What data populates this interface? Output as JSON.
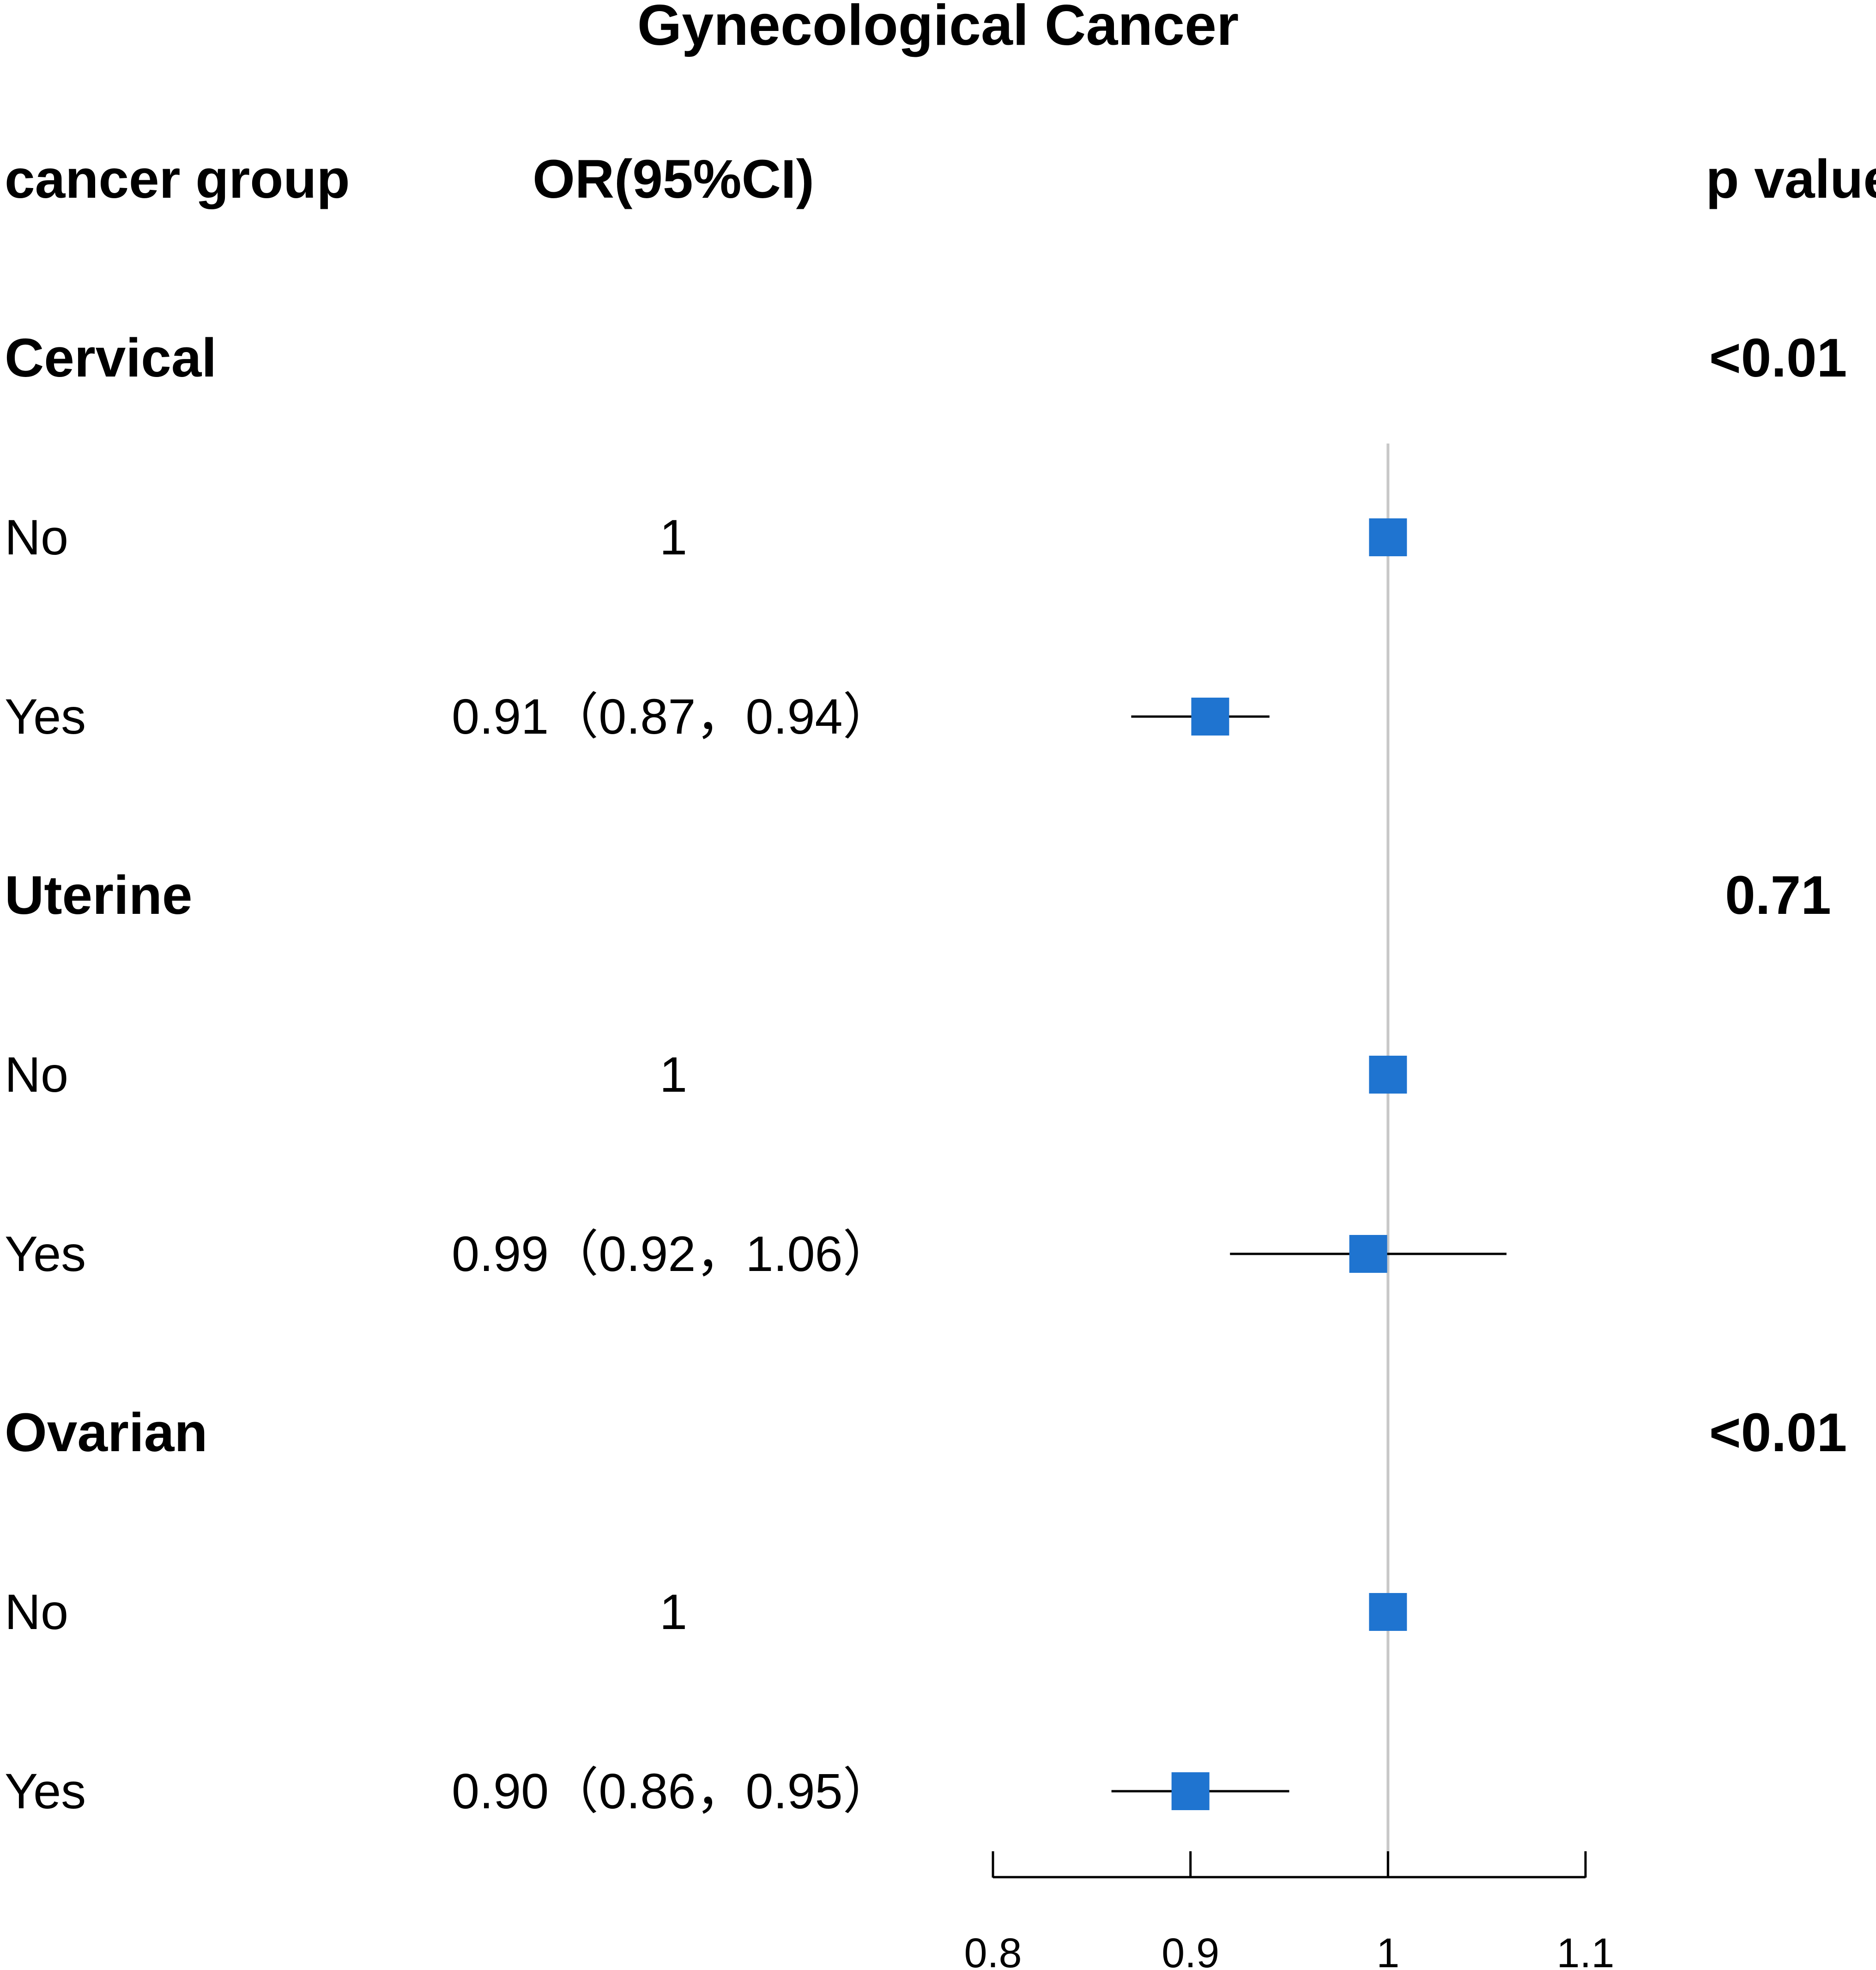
{
  "chart_data": {
    "type": "forest",
    "title": "Gynecological Cancer",
    "columns": {
      "group": "cancer group",
      "or": "OR(95%CI)",
      "p": "p value"
    },
    "reference_line": 1,
    "xlim": [
      0.8,
      1.1
    ],
    "xticks": [
      0.8,
      0.9,
      1,
      1.1
    ],
    "xtick_labels": [
      "0.8",
      "0.9",
      "1",
      "1.1"
    ],
    "marker_color": "#1f74d0",
    "groups": [
      {
        "name": "Cervical",
        "p_value": "<0.01",
        "rows": [
          {
            "label": "No",
            "or_text": "1",
            "or": 1,
            "lower": 1,
            "upper": 1
          },
          {
            "label": "Yes",
            "or_text": "0.91（0.87，0.94）",
            "or": 0.91,
            "lower": 0.87,
            "upper": 0.94
          }
        ]
      },
      {
        "name": "Uterine",
        "p_value": "0.71",
        "rows": [
          {
            "label": "No",
            "or_text": "1",
            "or": 1,
            "lower": 1,
            "upper": 1
          },
          {
            "label": "Yes",
            "or_text": "0.99（0.92，1.06）",
            "or": 0.99,
            "lower": 0.92,
            "upper": 1.06
          }
        ]
      },
      {
        "name": "Ovarian",
        "p_value": "<0.01",
        "rows": [
          {
            "label": "No",
            "or_text": "1",
            "or": 1,
            "lower": 1,
            "upper": 1
          },
          {
            "label": "Yes",
            "or_text": "0.90（0.86，0.95）",
            "or": 0.9,
            "lower": 0.86,
            "upper": 0.95
          }
        ]
      }
    ]
  }
}
